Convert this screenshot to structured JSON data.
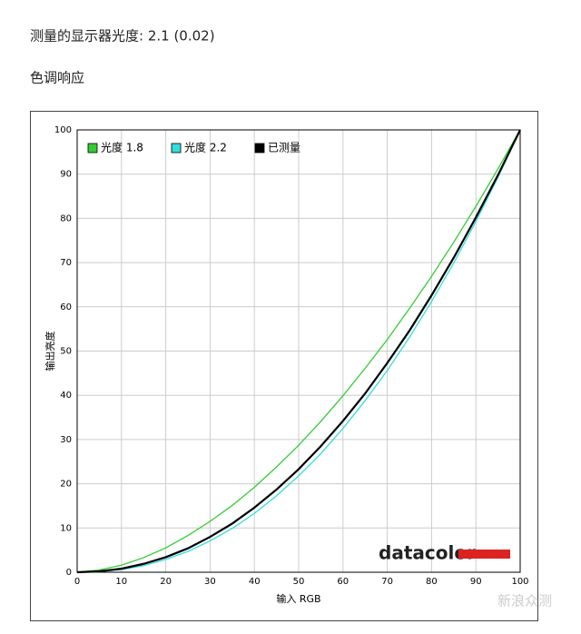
{
  "heading": "测量的显示器光度: 2.1 (0.02)",
  "section_title": "色调响应",
  "logo": "datacolor",
  "watermark": "新浪众测",
  "chart_data": {
    "type": "line",
    "xlabel": "输入 RGB",
    "ylabel": "输出亮度",
    "x": [
      0,
      5,
      10,
      15,
      20,
      25,
      30,
      35,
      40,
      45,
      50,
      55,
      60,
      65,
      70,
      75,
      80,
      85,
      90,
      95,
      100
    ],
    "series": [
      {
        "name": "光度 1.8",
        "color": "#33cc33",
        "values": [
          0,
          0.5,
          1.6,
          3.3,
          5.5,
          8.3,
          11.5,
          15.1,
          19.2,
          23.8,
          28.7,
          34.1,
          39.9,
          46.1,
          52.6,
          59.6,
          66.9,
          74.6,
          82.7,
          91.2,
          100
        ]
      },
      {
        "name": "光度 2.2",
        "color": "#33dddd",
        "values": [
          0,
          0.1,
          0.6,
          1.5,
          2.9,
          4.7,
          7.1,
          9.9,
          13.3,
          17.3,
          21.8,
          26.8,
          32.5,
          38.8,
          45.6,
          53.1,
          61.2,
          69.9,
          79.3,
          89.3,
          100
        ]
      },
      {
        "name": "已测量",
        "color": "#000000",
        "values": [
          0,
          0.2,
          0.8,
          1.9,
          3.4,
          5.4,
          8.0,
          11.0,
          14.6,
          18.7,
          23.3,
          28.5,
          34.2,
          40.4,
          47.3,
          54.6,
          62.6,
          71.1,
          80.2,
          89.8,
          100
        ]
      }
    ],
    "xlim": [
      0,
      100
    ],
    "ylim": [
      0,
      100
    ],
    "xticks": [
      0,
      10,
      20,
      30,
      40,
      50,
      60,
      70,
      80,
      90,
      100
    ],
    "yticks": [
      0,
      10,
      20,
      30,
      40,
      50,
      60,
      70,
      80,
      90,
      100
    ],
    "grid": true,
    "legend": "top-left"
  }
}
